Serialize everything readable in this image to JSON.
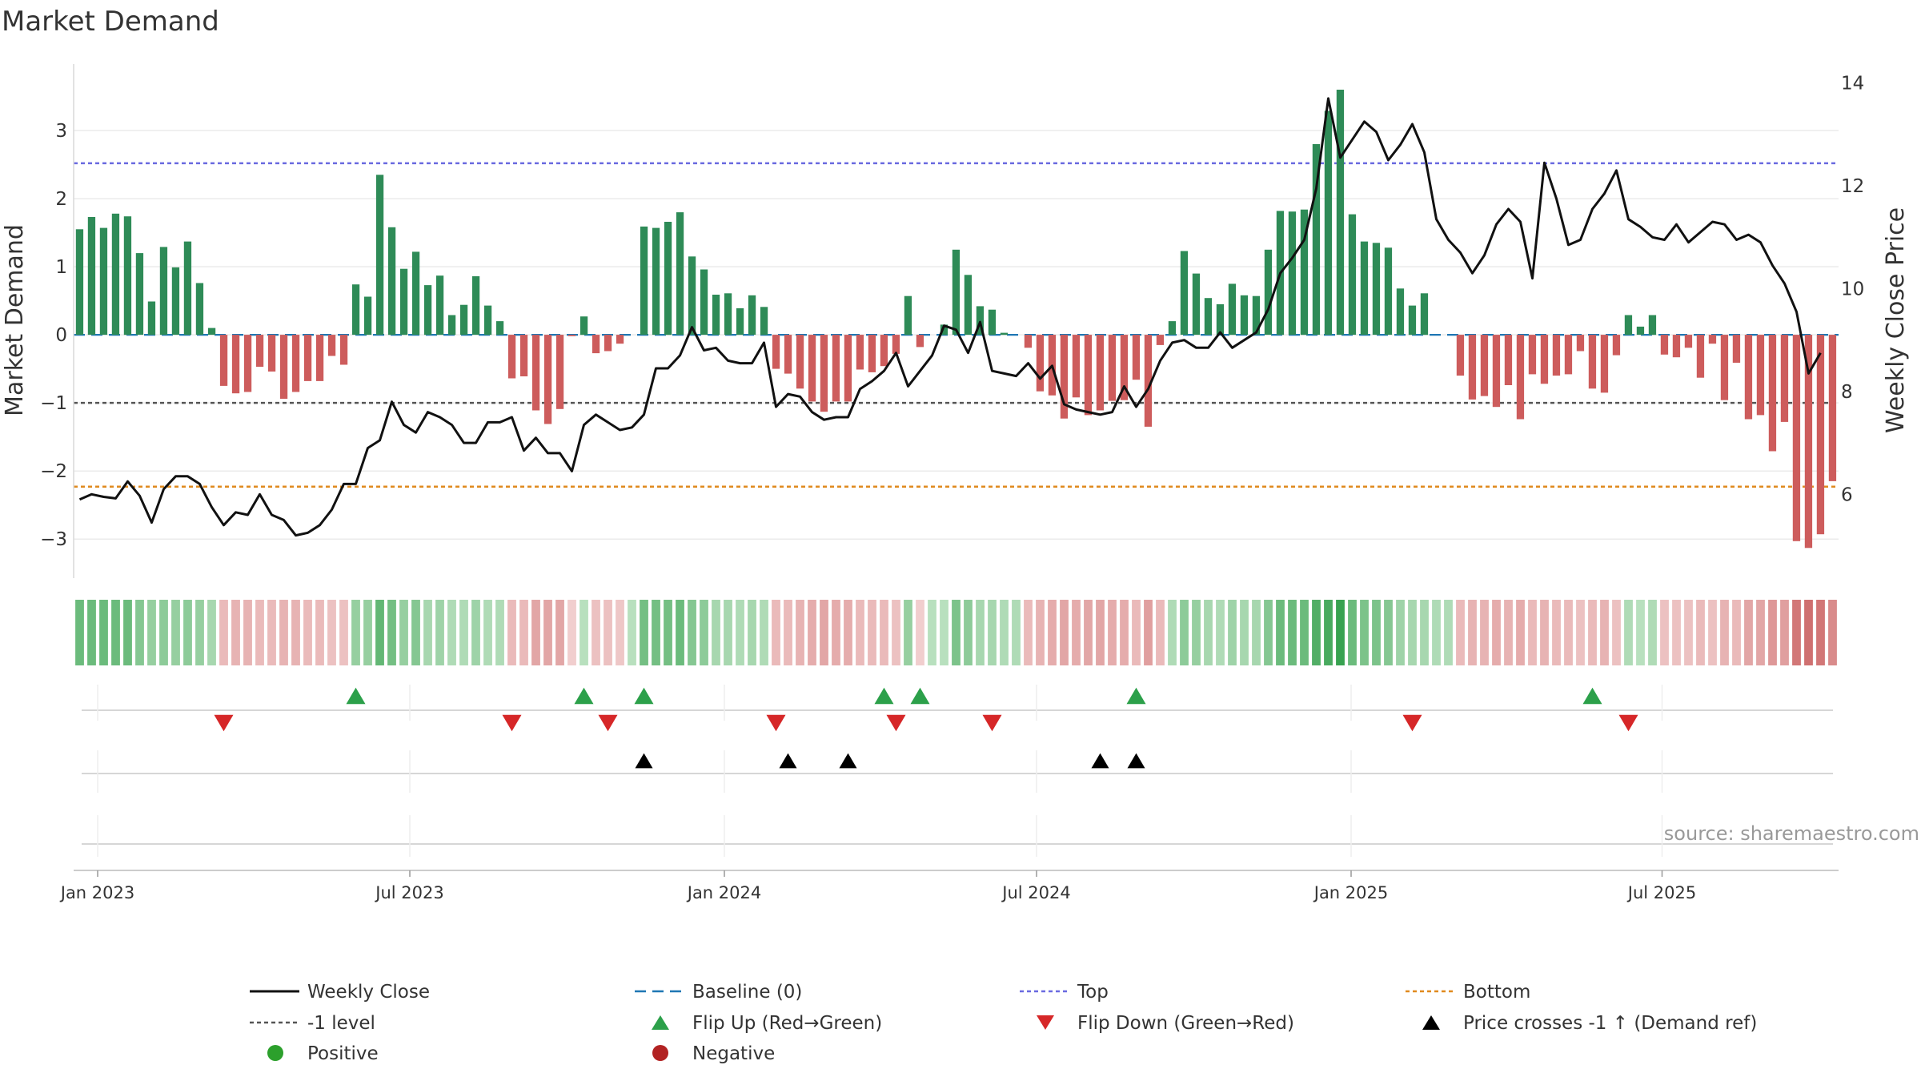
{
  "chart_data": {
    "type": "bar",
    "title": "Market Demand",
    "ylabel": "Market Demand",
    "y2label": "Weekly Close Price",
    "source": "source: sharemaestro.com",
    "ylim": [
      -3.55,
      4.0
    ],
    "y2lim": [
      4.4,
      14.4
    ],
    "y_ticks": [
      {
        "v": 3,
        "label": "3"
      },
      {
        "v": 2,
        "label": "2"
      },
      {
        "v": 1,
        "label": "1"
      },
      {
        "v": 0,
        "label": "0"
      },
      {
        "v": -1,
        "label": "−1"
      },
      {
        "v": -2,
        "label": "−2"
      },
      {
        "v": -3,
        "label": "−3"
      }
    ],
    "y2_ticks": [
      {
        "v": 14,
        "label": "14"
      },
      {
        "v": 12,
        "label": "12"
      },
      {
        "v": 10,
        "label": "10"
      },
      {
        "v": 8,
        "label": "8"
      },
      {
        "v": 6,
        "label": "6"
      }
    ],
    "x_ticks": [
      {
        "i": 1.5,
        "label": "Jan 2023"
      },
      {
        "i": 27.5,
        "label": "Jul 2023"
      },
      {
        "i": 53.7,
        "label": "Jan 2024"
      },
      {
        "i": 79.7,
        "label": "Jul 2024"
      },
      {
        "i": 105.9,
        "label": "Jan 2025"
      },
      {
        "i": 131.8,
        "label": "Jul 2025"
      }
    ],
    "reference_lines": {
      "baseline": 0,
      "top": 2.52,
      "bottom": -2.23,
      "minus_one": -1
    },
    "series": [
      {
        "name": "Market Demand",
        "kind": "bar",
        "values": [
          1.55,
          1.73,
          1.57,
          1.78,
          1.74,
          1.2,
          0.49,
          1.29,
          0.99,
          1.37,
          0.76,
          0.1,
          -0.75,
          -0.86,
          -0.84,
          -0.47,
          -0.54,
          -0.94,
          -0.84,
          -0.68,
          -0.68,
          -0.31,
          -0.44,
          0.74,
          0.56,
          2.35,
          1.58,
          0.97,
          1.22,
          0.73,
          0.87,
          0.29,
          0.44,
          0.86,
          0.43,
          0.2,
          -0.64,
          -0.61,
          -1.11,
          -1.31,
          -1.09,
          -0.02,
          0.27,
          -0.27,
          -0.24,
          -0.13,
          0.0,
          1.59,
          1.57,
          1.66,
          1.8,
          1.15,
          0.96,
          0.59,
          0.61,
          0.39,
          0.58,
          0.41,
          -0.5,
          -0.57,
          -0.79,
          -0.98,
          -1.13,
          -0.98,
          -0.98,
          -0.51,
          -0.55,
          -0.46,
          -0.28,
          0.57,
          -0.18,
          0.0,
          0.15,
          1.25,
          0.88,
          0.42,
          0.37,
          0.03,
          0.0,
          -0.19,
          -0.83,
          -0.89,
          -1.23,
          -0.92,
          -1.18,
          -1.11,
          -0.97,
          -0.96,
          -0.66,
          -1.35,
          -0.15,
          0.2,
          1.23,
          0.9,
          0.54,
          0.45,
          0.75,
          0.58,
          0.57,
          1.25,
          1.82,
          1.81,
          1.84,
          2.8,
          3.29,
          3.6,
          1.77,
          1.37,
          1.35,
          1.28,
          0.68,
          0.43,
          0.61,
          0.0,
          0.0,
          -0.6,
          -0.95,
          -0.9,
          -1.06,
          -0.74,
          -1.24,
          -0.58,
          -0.72,
          -0.6,
          -0.58,
          -0.24,
          -0.79,
          -0.85,
          -0.3,
          0.29,
          0.12,
          0.29,
          -0.29,
          -0.33,
          -0.19,
          -0.63,
          -0.13,
          -0.96,
          -0.41,
          -1.24,
          -1.18,
          -1.71,
          -1.28,
          -3.03,
          -3.13,
          -2.93,
          -2.15
        ]
      },
      {
        "name": "Weekly Close",
        "kind": "line",
        "axis": "y2",
        "values": [
          5.9,
          6.0,
          5.95,
          5.92,
          6.25,
          5.97,
          5.45,
          6.1,
          6.35,
          6.35,
          6.2,
          5.75,
          5.4,
          5.65,
          5.6,
          6.0,
          5.6,
          5.5,
          5.2,
          5.25,
          5.4,
          5.7,
          6.2,
          6.2,
          6.9,
          7.05,
          7.8,
          7.35,
          7.2,
          7.6,
          7.5,
          7.35,
          7.0,
          7.0,
          7.4,
          7.4,
          7.5,
          6.85,
          7.1,
          6.8,
          6.8,
          6.45,
          7.35,
          7.55,
          7.4,
          7.25,
          7.3,
          7.55,
          8.45,
          8.45,
          8.7,
          9.25,
          8.8,
          8.85,
          8.6,
          8.55,
          8.55,
          8.95,
          7.7,
          7.95,
          7.9,
          7.6,
          7.45,
          7.5,
          7.5,
          8.05,
          8.2,
          8.4,
          8.75,
          8.1,
          8.4,
          8.7,
          9.28,
          9.2,
          8.75,
          9.35,
          8.4,
          8.35,
          8.3,
          8.55,
          8.25,
          8.5,
          7.75,
          7.65,
          7.6,
          7.55,
          7.6,
          8.1,
          7.7,
          8.05,
          8.6,
          8.95,
          9.0,
          8.85,
          8.85,
          9.15,
          8.85,
          9.0,
          9.15,
          9.6,
          10.3,
          10.6,
          10.95,
          11.95,
          13.7,
          12.55,
          12.9,
          13.25,
          13.05,
          12.5,
          12.8,
          13.2,
          12.65,
          11.35,
          10.95,
          10.7,
          10.3,
          10.65,
          11.25,
          11.55,
          11.3,
          10.2,
          12.45,
          11.75,
          10.85,
          10.95,
          11.55,
          11.85,
          12.3,
          11.35,
          11.2,
          11.0,
          10.95,
          11.25,
          10.9,
          11.1,
          11.3,
          11.25,
          10.95,
          11.05,
          10.9,
          10.45,
          10.1,
          9.55,
          8.35,
          8.75
        ]
      },
      {
        "name": "Signal Strength",
        "kind": "heat-strip",
        "values": [
          0.7,
          0.7,
          0.7,
          0.7,
          0.7,
          0.55,
          0.45,
          0.5,
          0.45,
          0.5,
          0.45,
          0.35,
          -0.3,
          -0.35,
          -0.35,
          -0.3,
          -0.3,
          -0.35,
          -0.35,
          -0.3,
          -0.3,
          -0.25,
          -0.25,
          0.45,
          0.45,
          0.75,
          0.65,
          0.45,
          0.55,
          0.35,
          0.4,
          0.3,
          0.3,
          0.4,
          0.3,
          0.3,
          -0.3,
          -0.3,
          -0.45,
          -0.45,
          -0.45,
          -0.15,
          0.25,
          -0.25,
          -0.25,
          -0.2,
          0.25,
          0.65,
          0.65,
          0.65,
          0.7,
          0.55,
          0.5,
          0.35,
          0.35,
          0.3,
          0.35,
          0.3,
          -0.3,
          -0.3,
          -0.35,
          -0.4,
          -0.45,
          -0.4,
          -0.4,
          -0.3,
          -0.3,
          -0.3,
          -0.25,
          0.45,
          -0.15,
          0.25,
          0.25,
          0.6,
          0.5,
          0.35,
          0.35,
          0.3,
          0.3,
          -0.3,
          -0.35,
          -0.4,
          -0.45,
          -0.4,
          -0.45,
          -0.45,
          -0.4,
          -0.4,
          -0.3,
          -0.5,
          -0.3,
          0.3,
          0.5,
          0.45,
          0.35,
          0.3,
          0.4,
          0.35,
          0.35,
          0.55,
          0.7,
          0.7,
          0.7,
          0.85,
          0.9,
          1.0,
          0.7,
          0.6,
          0.6,
          0.55,
          0.4,
          0.35,
          0.35,
          0.3,
          0.3,
          -0.3,
          -0.35,
          -0.35,
          -0.4,
          -0.35,
          -0.4,
          -0.3,
          -0.35,
          -0.3,
          -0.3,
          -0.25,
          -0.3,
          -0.35,
          -0.25,
          0.3,
          0.25,
          0.3,
          -0.25,
          -0.25,
          -0.25,
          -0.3,
          -0.25,
          -0.35,
          -0.3,
          -0.45,
          -0.45,
          -0.55,
          -0.5,
          -0.8,
          -0.85,
          -0.8,
          -0.65
        ]
      },
      {
        "name": "Flip Up (Red→Green)",
        "kind": "marker",
        "indices": [
          23,
          42,
          47,
          67,
          70,
          88,
          126
        ]
      },
      {
        "name": "Flip Down (Green→Red)",
        "kind": "marker",
        "indices": [
          12,
          36,
          44,
          58,
          68,
          76,
          111,
          129
        ]
      },
      {
        "name": "Price crosses -1 ↑ (Demand ref)",
        "kind": "marker",
        "indices": [
          47,
          59,
          64,
          85,
          88
        ]
      }
    ],
    "legend": [
      {
        "label": "Weekly Close",
        "symbol": "solid-line",
        "color": "#111111"
      },
      {
        "label": "Baseline (0)",
        "symbol": "dashed-line",
        "color": "#1f77b4"
      },
      {
        "label": "Top",
        "symbol": "dotted-line",
        "color": "#6a6ae0"
      },
      {
        "label": "Bottom",
        "symbol": "dotted-line",
        "color": "#e08a1e"
      },
      {
        "label": "-1 level",
        "symbol": "dotted-line",
        "color": "#555555"
      },
      {
        "label": "Flip Up (Red→Green)",
        "symbol": "triangle-up",
        "color": "#2ca04a"
      },
      {
        "label": "Flip Down (Green→Red)",
        "symbol": "triangle-down",
        "color": "#d62728"
      },
      {
        "label": "Price crosses -1 ↑ (Demand ref)",
        "symbol": "triangle-up",
        "color": "#000000"
      },
      {
        "label": "Positive",
        "symbol": "circle",
        "color": "#2ca02c"
      },
      {
        "label": "Negative",
        "symbol": "circle",
        "color": "#b22222"
      }
    ],
    "legend_position": "bottom"
  },
  "colors": {
    "positive_bar": "#2e8b57",
    "negative_bar": "#cd5c5c",
    "line": "#111111",
    "baseline": "#1f77b4",
    "top": "#6a6ae0",
    "bottom": "#e08a1e",
    "minus_one": "#555555",
    "flip_up": "#2ca04a",
    "flip_down": "#d62728",
    "cross": "#000000"
  }
}
